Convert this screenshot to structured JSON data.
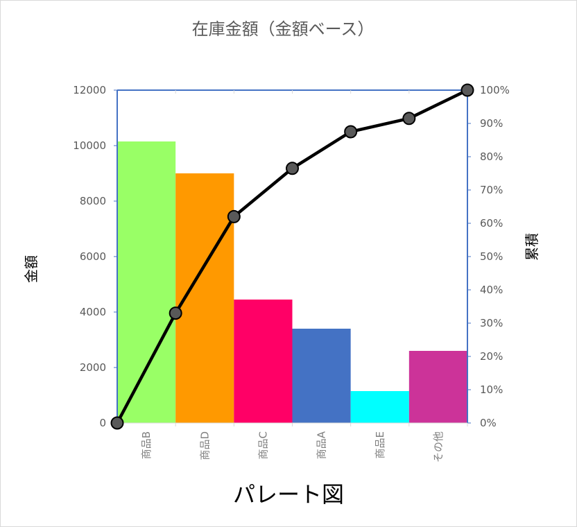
{
  "chart_data": {
    "type": "pareto",
    "title": "在庫金額（金額ベース）",
    "categories": [
      "商品B",
      "商品D",
      "商品C",
      "商品A",
      "商品E",
      "その他"
    ],
    "bars": {
      "values": [
        10150,
        9000,
        4450,
        3400,
        1150,
        2600
      ],
      "colors": [
        "#99ff66",
        "#ff9900",
        "#ff0066",
        "#4472c4",
        "#00ffff",
        "#cc3399"
      ]
    },
    "cumulative_line": {
      "x_positions": [
        0,
        1,
        2,
        3,
        4,
        5,
        6
      ],
      "values_pct": [
        0,
        33,
        62,
        76.5,
        87.5,
        91.5,
        100
      ],
      "color": "#000000",
      "marker_color": "#595959"
    },
    "ylabel": "金額",
    "y2label": "累積",
    "xlabel": "パレート図",
    "ylim": [
      0,
      12000
    ],
    "y2lim": [
      0,
      100
    ],
    "yticks": [
      "0",
      "2000",
      "4000",
      "6000",
      "8000",
      "10000",
      "12000"
    ],
    "y2ticks": [
      "0%",
      "10%",
      "20%",
      "30%",
      "40%",
      "50%",
      "60%",
      "70%",
      "80%",
      "90%",
      "100%"
    ],
    "axis_color": "#4472c4",
    "grid": false
  }
}
